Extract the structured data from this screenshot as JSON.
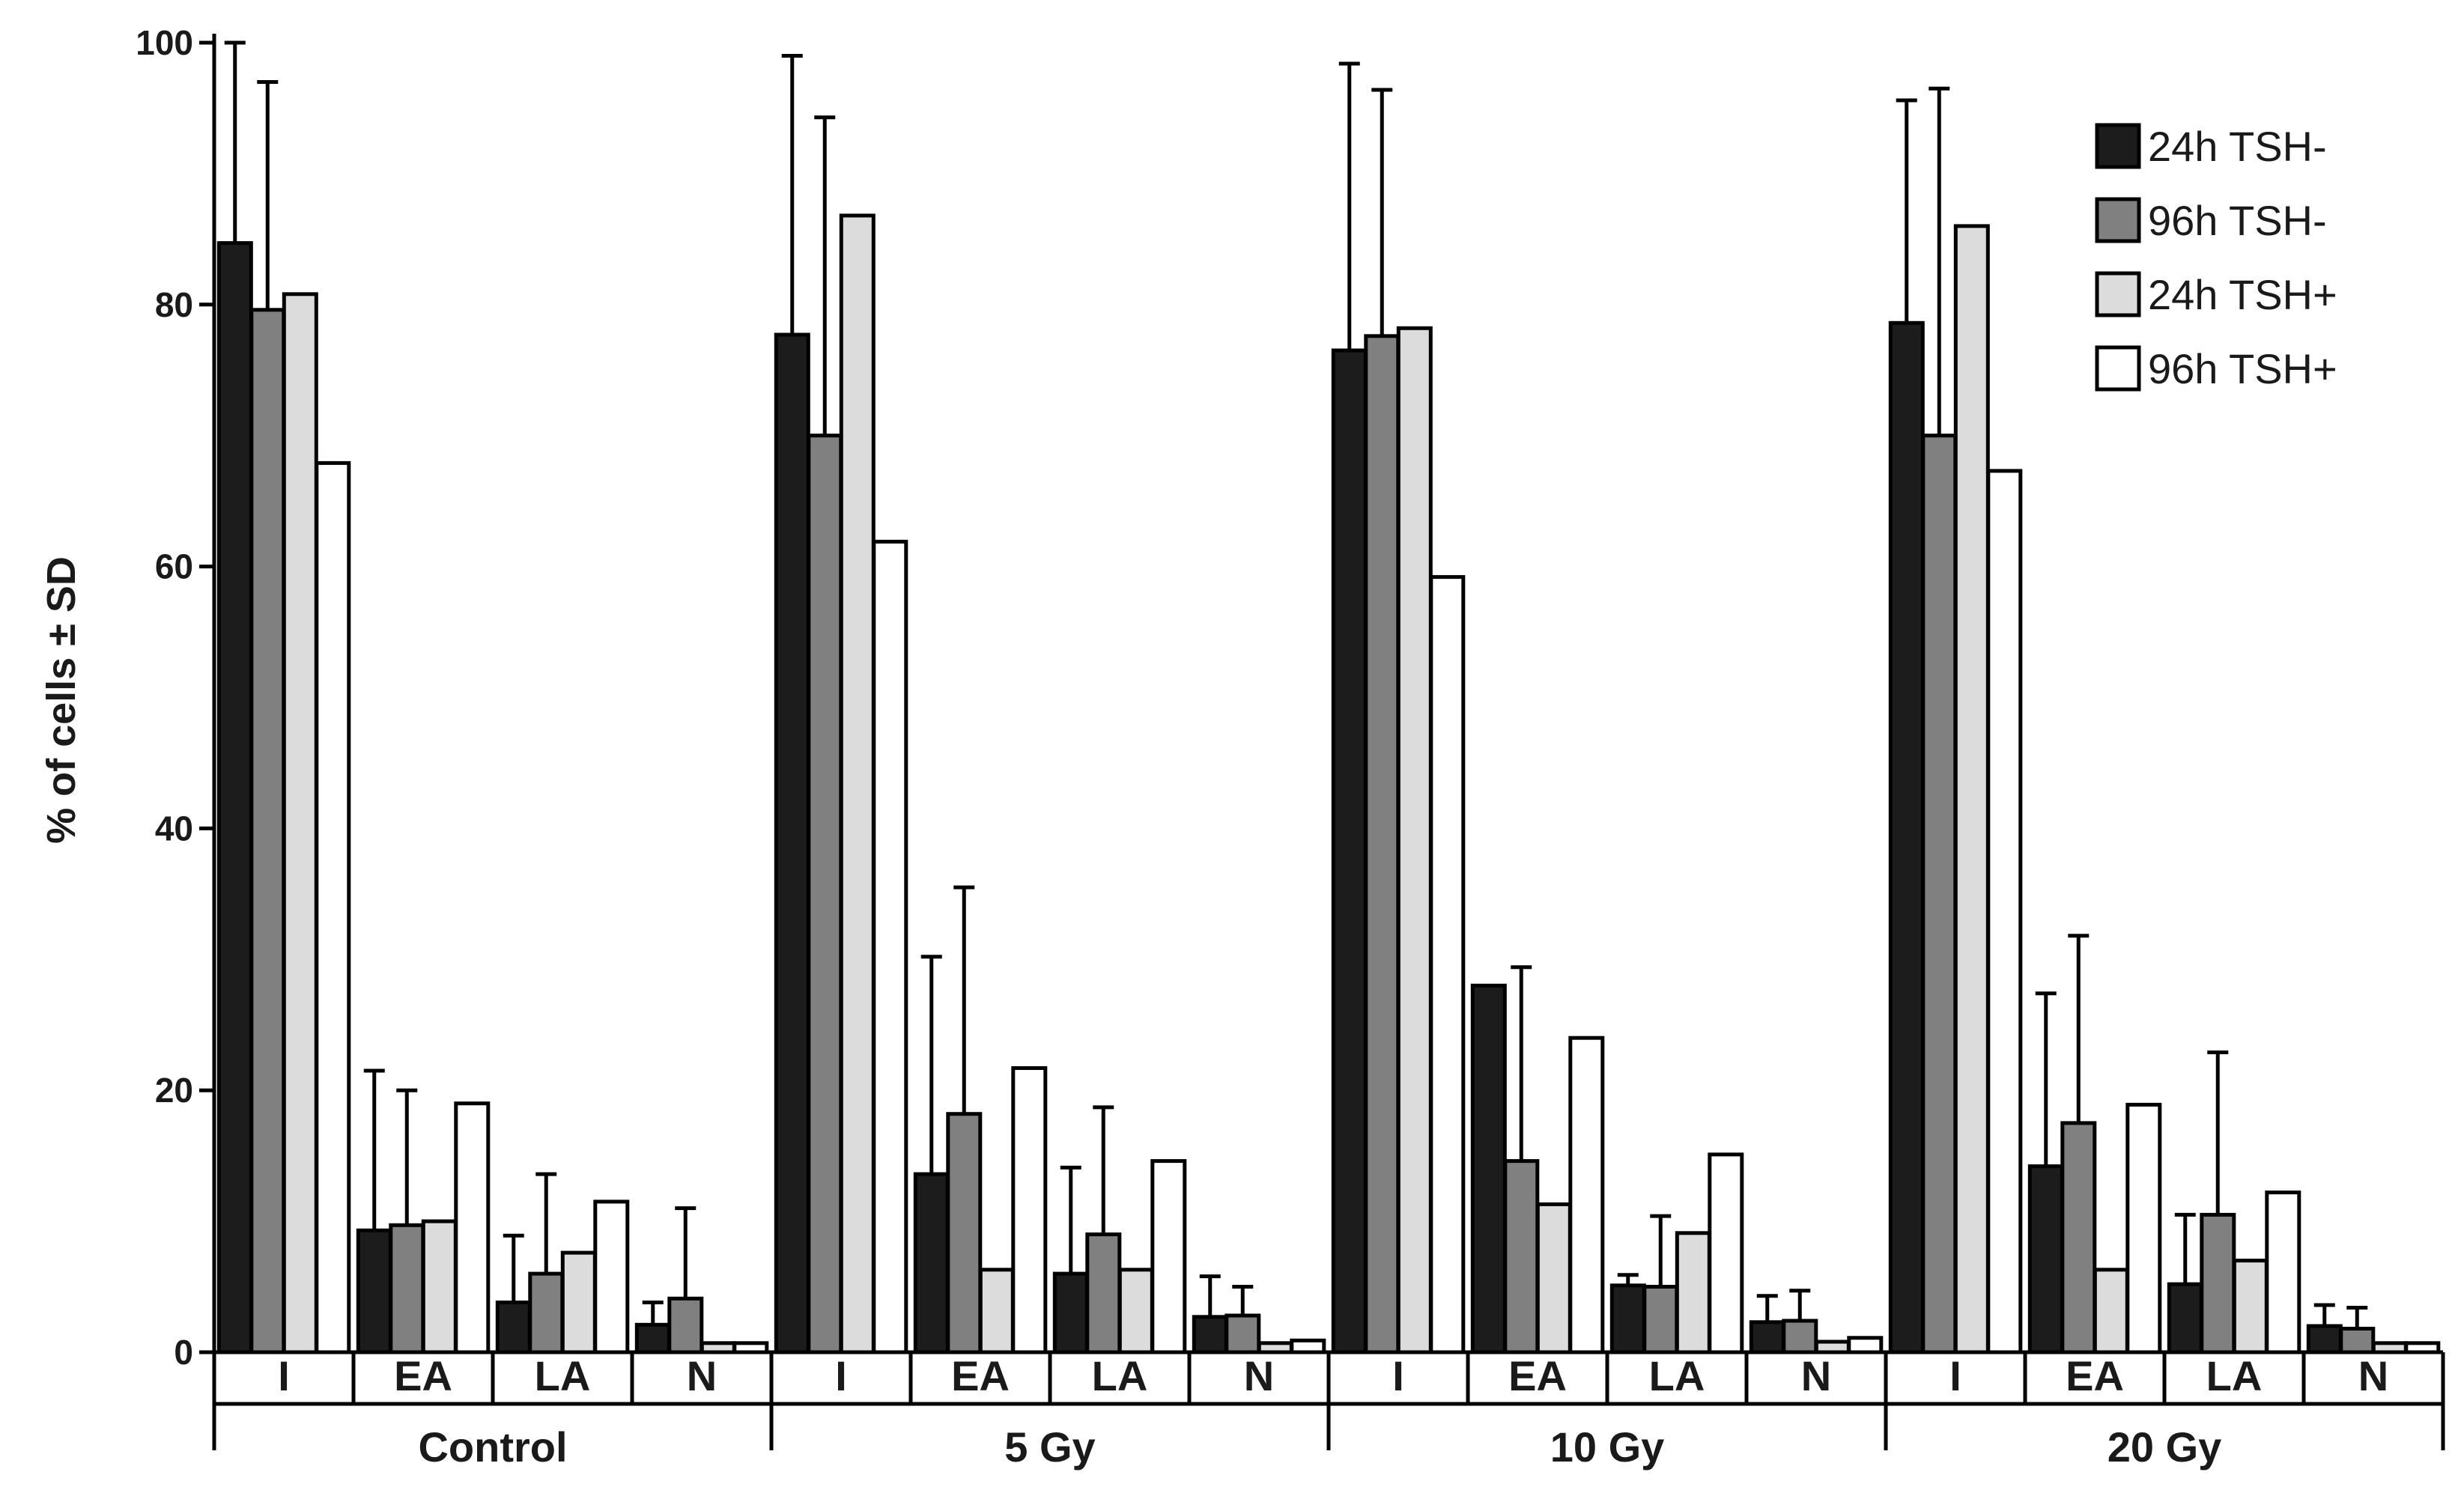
{
  "chart_data": {
    "type": "bar",
    "ylabel": "% of cells ± SD",
    "xlabel": "",
    "ylim": [
      0,
      100
    ],
    "yticks": [
      0,
      20,
      40,
      60,
      80,
      100
    ],
    "grid": false,
    "legend_position": "top-right",
    "groups": [
      "Control",
      "5 Gy",
      "10 Gy",
      "20 Gy"
    ],
    "categories": [
      "I",
      "EA",
      "LA",
      "N"
    ],
    "series": [
      {
        "name": "24h TSH-",
        "color": "#1c1c1c",
        "values": [
          [
            84.7,
            9.3,
            3.8,
            2.1
          ],
          [
            77.7,
            13.6,
            6.0,
            2.7
          ],
          [
            76.5,
            28.0,
            5.1,
            2.3
          ],
          [
            78.6,
            14.2,
            5.2,
            2.0
          ]
        ],
        "sd": [
          [
            15.3,
            12.2,
            5.1,
            1.7
          ],
          [
            21.3,
            16.6,
            8.1,
            3.1
          ],
          [
            21.9,
            0,
            0.8,
            2.0
          ],
          [
            17.0,
            13.2,
            5.3,
            1.6
          ]
        ]
      },
      {
        "name": "96h TSH-",
        "color": "#808080",
        "values": [
          [
            79.6,
            9.7,
            6.0,
            4.1
          ],
          [
            70.0,
            18.2,
            9.0,
            2.8
          ],
          [
            77.6,
            14.6,
            5.0,
            2.4
          ],
          [
            70.0,
            17.5,
            10.5,
            1.8
          ]
        ],
        "sd": [
          [
            17.4,
            10.3,
            7.6,
            6.9
          ],
          [
            24.3,
            17.3,
            9.7,
            2.2
          ],
          [
            18.8,
            14.8,
            5.4,
            2.3
          ],
          [
            26.5,
            14.3,
            12.4,
            1.6
          ]
        ]
      },
      {
        "name": "24h TSH+",
        "color": "#dcdcdc",
        "values": [
          [
            80.8,
            10.0,
            7.6,
            0.7
          ],
          [
            86.8,
            6.3,
            6.3,
            0.7
          ],
          [
            78.2,
            11.3,
            9.1,
            0.8
          ],
          [
            86.0,
            6.3,
            7.0,
            0.7
          ]
        ]
      },
      {
        "name": "96h TSH+",
        "color": "#ffffff",
        "values": [
          [
            67.9,
            19.0,
            11.5,
            0.7
          ],
          [
            61.9,
            21.7,
            14.6,
            0.9
          ],
          [
            59.2,
            24.0,
            15.1,
            1.1
          ],
          [
            67.3,
            18.9,
            12.2,
            0.7
          ]
        ]
      }
    ]
  }
}
